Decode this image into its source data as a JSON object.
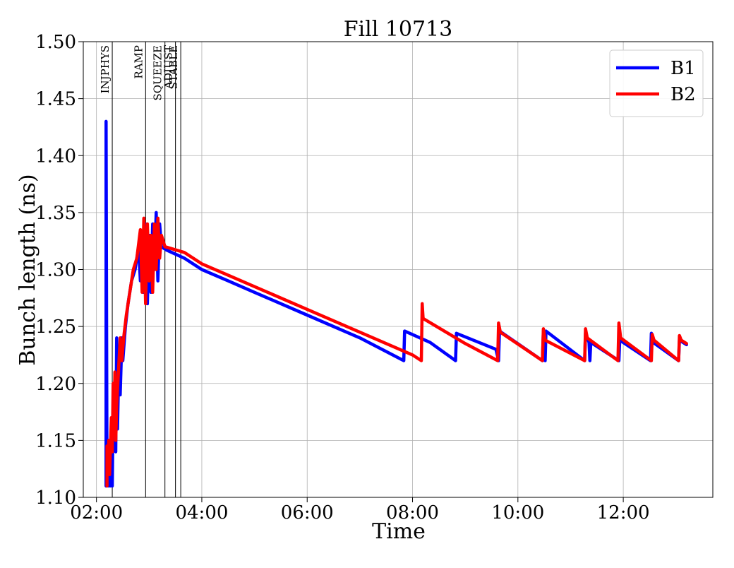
{
  "chart_data": {
    "type": "line",
    "title": "Fill 10713",
    "xlabel": "Time",
    "ylabel": "Bunch length (ns)",
    "xlim": [
      "01:45",
      "13:42"
    ],
    "ylim": [
      1.1,
      1.5
    ],
    "xticks": [
      "02:00",
      "04:00",
      "06:00",
      "08:00",
      "10:00",
      "12:00"
    ],
    "yticks": [
      "1.10",
      "1.15",
      "1.20",
      "1.25",
      "1.30",
      "1.35",
      "1.40",
      "1.45",
      "1.50"
    ],
    "grid": true,
    "legend_position": "top-right",
    "phases": [
      {
        "label": "INJPHYS",
        "time": "02:18"
      },
      {
        "label": "RAMP",
        "time": "02:56"
      },
      {
        "label": "SQUEEZE",
        "time": "03:18"
      },
      {
        "label": "ADJUST",
        "time": "03:30"
      },
      {
        "label": "STABLE",
        "time": "03:36"
      }
    ],
    "series": [
      {
        "name": "B1",
        "color": "#0000ff",
        "points": [
          [
            "02:11",
            1.11
          ],
          [
            "02:11",
            1.43
          ],
          [
            "02:12",
            1.11
          ],
          [
            "02:13",
            1.15
          ],
          [
            "02:14",
            1.11
          ],
          [
            "02:15",
            1.15
          ],
          [
            "02:16",
            1.11
          ],
          [
            "02:17",
            1.16
          ],
          [
            "02:18",
            1.11
          ],
          [
            "02:19",
            1.18
          ],
          [
            "02:20",
            1.15
          ],
          [
            "02:21",
            1.2
          ],
          [
            "02:22",
            1.14
          ],
          [
            "02:23",
            1.24
          ],
          [
            "02:24",
            1.16
          ],
          [
            "02:25",
            1.2
          ],
          [
            "02:26",
            1.23
          ],
          [
            "02:27",
            1.19
          ],
          [
            "02:29",
            1.24
          ],
          [
            "02:30",
            1.22
          ],
          [
            "02:33",
            1.25
          ],
          [
            "02:36",
            1.27
          ],
          [
            "02:40",
            1.29
          ],
          [
            "02:44",
            1.3
          ],
          [
            "02:48",
            1.32
          ],
          [
            "02:50",
            1.29
          ],
          [
            "02:52",
            1.33
          ],
          [
            "02:54",
            1.28
          ],
          [
            "02:56",
            1.34
          ],
          [
            "02:58",
            1.27
          ],
          [
            "03:00",
            1.33
          ],
          [
            "03:02",
            1.28
          ],
          [
            "03:04",
            1.34
          ],
          [
            "03:06",
            1.3
          ],
          [
            "03:08",
            1.35
          ],
          [
            "03:10",
            1.29
          ],
          [
            "03:12",
            1.34
          ],
          [
            "03:14",
            1.32
          ],
          [
            "03:20",
            1.317
          ],
          [
            "03:40",
            1.31
          ],
          [
            "04:00",
            1.3
          ],
          [
            "04:30",
            1.29
          ],
          [
            "05:00",
            1.28
          ],
          [
            "06:00",
            1.26
          ],
          [
            "07:00",
            1.24
          ],
          [
            "07:50",
            1.22
          ],
          [
            "07:51",
            1.246
          ],
          [
            "08:20",
            1.236
          ],
          [
            "08:49",
            1.22
          ],
          [
            "08:50",
            1.244
          ],
          [
            "09:35",
            1.23
          ],
          [
            "09:38",
            1.22
          ],
          [
            "09:39",
            1.246
          ],
          [
            "10:28",
            1.22
          ],
          [
            "10:29",
            1.246
          ],
          [
            "10:31",
            1.22
          ],
          [
            "10:32",
            1.246
          ],
          [
            "11:16",
            1.22
          ],
          [
            "11:17",
            1.244
          ],
          [
            "11:21",
            1.236
          ],
          [
            "11:22",
            1.22
          ],
          [
            "11:23",
            1.236
          ],
          [
            "11:55",
            1.22
          ],
          [
            "11:56",
            1.238
          ],
          [
            "12:31",
            1.22
          ],
          [
            "12:32",
            1.244
          ],
          [
            "12:34",
            1.236
          ],
          [
            "13:03",
            1.22
          ],
          [
            "13:04",
            1.238
          ],
          [
            "13:12",
            1.234
          ]
        ]
      },
      {
        "name": "B2",
        "color": "#ff0000",
        "points": [
          [
            "02:12",
            1.11
          ],
          [
            "02:12",
            1.145
          ],
          [
            "02:13",
            1.12
          ],
          [
            "02:14",
            1.15
          ],
          [
            "02:15",
            1.12
          ],
          [
            "02:17",
            1.17
          ],
          [
            "02:18",
            1.14
          ],
          [
            "02:19",
            1.2
          ],
          [
            "02:20",
            1.16
          ],
          [
            "02:21",
            1.21
          ],
          [
            "02:22",
            1.15
          ],
          [
            "02:23",
            1.18
          ],
          [
            "02:25",
            1.21
          ],
          [
            "02:27",
            1.24
          ],
          [
            "02:29",
            1.22
          ],
          [
            "02:31",
            1.24
          ],
          [
            "02:34",
            1.26
          ],
          [
            "02:38",
            1.28
          ],
          [
            "02:42",
            1.3
          ],
          [
            "02:46",
            1.31
          ],
          [
            "02:50",
            1.335
          ],
          [
            "02:52",
            1.28
          ],
          [
            "02:54",
            1.345
          ],
          [
            "02:56",
            1.27
          ],
          [
            "02:58",
            1.34
          ],
          [
            "03:00",
            1.29
          ],
          [
            "03:02",
            1.33
          ],
          [
            "03:04",
            1.28
          ],
          [
            "03:06",
            1.34
          ],
          [
            "03:08",
            1.3
          ],
          [
            "03:10",
            1.345
          ],
          [
            "03:12",
            1.31
          ],
          [
            "03:14",
            1.33
          ],
          [
            "03:18",
            1.32
          ],
          [
            "03:40",
            1.315
          ],
          [
            "04:00",
            1.305
          ],
          [
            "04:30",
            1.295
          ],
          [
            "05:00",
            1.285
          ],
          [
            "06:00",
            1.265
          ],
          [
            "07:00",
            1.245
          ],
          [
            "08:00",
            1.225
          ],
          [
            "08:10",
            1.22
          ],
          [
            "08:11",
            1.27
          ],
          [
            "08:12",
            1.257
          ],
          [
            "09:00",
            1.235
          ],
          [
            "09:37",
            1.22
          ],
          [
            "09:38",
            1.253
          ],
          [
            "09:40",
            1.245
          ],
          [
            "10:28",
            1.22
          ],
          [
            "10:29",
            1.248
          ],
          [
            "10:31",
            1.238
          ],
          [
            "11:16",
            1.22
          ],
          [
            "11:17",
            1.248
          ],
          [
            "11:19",
            1.24
          ],
          [
            "11:54",
            1.22
          ],
          [
            "11:55",
            1.253
          ],
          [
            "11:57",
            1.24
          ],
          [
            "12:32",
            1.22
          ],
          [
            "12:33",
            1.243
          ],
          [
            "12:35",
            1.238
          ],
          [
            "13:03",
            1.22
          ],
          [
            "13:04",
            1.242
          ],
          [
            "13:06",
            1.238
          ],
          [
            "13:12",
            1.235
          ]
        ]
      }
    ]
  }
}
